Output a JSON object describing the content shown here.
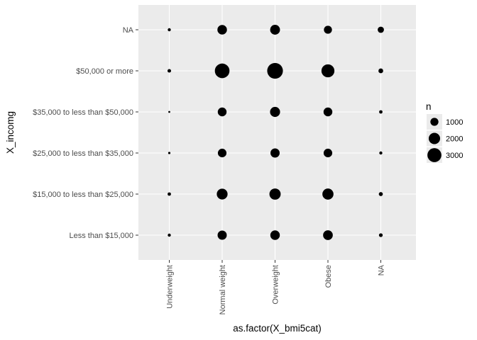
{
  "chart_data": {
    "type": "scatter",
    "xlabel": "as.factor(X_bmi5cat)",
    "ylabel": "X_incomg",
    "x_categories": [
      "Underweight",
      "Normal weight",
      "Overweight",
      "Obese",
      "NA"
    ],
    "y_categories": [
      "Less than $15,000",
      "$15,000 to less than $25,000",
      "$25,000 to less than $35,000",
      "$35,000 to less than $50,000",
      "$50,000 or more",
      "NA"
    ],
    "size_variable": "n",
    "points": [
      {
        "x": "Underweight",
        "y": "NA",
        "n": 150
      },
      {
        "x": "Normal weight",
        "y": "NA",
        "n": 1400
      },
      {
        "x": "Overweight",
        "y": "NA",
        "n": 1500
      },
      {
        "x": "Obese",
        "y": "NA",
        "n": 1000
      },
      {
        "x": "NA",
        "y": "NA",
        "n": 600
      },
      {
        "x": "Underweight",
        "y": "$50,000 or more",
        "n": 200
      },
      {
        "x": "Normal weight",
        "y": "$50,000 or more",
        "n": 3300
      },
      {
        "x": "Overweight",
        "y": "$50,000 or more",
        "n": 3800
      },
      {
        "x": "Obese",
        "y": "$50,000 or more",
        "n": 2600
      },
      {
        "x": "NA",
        "y": "$50,000 or more",
        "n": 350
      },
      {
        "x": "Underweight",
        "y": "$35,000 to less than $50,000",
        "n": 60
      },
      {
        "x": "Normal weight",
        "y": "$35,000 to less than $50,000",
        "n": 1200
      },
      {
        "x": "Overweight",
        "y": "$35,000 to less than $50,000",
        "n": 1550
      },
      {
        "x": "Obese",
        "y": "$35,000 to less than $50,000",
        "n": 1200
      },
      {
        "x": "NA",
        "y": "$35,000 to less than $50,000",
        "n": 180
      },
      {
        "x": "Underweight",
        "y": "$25,000 to less than $35,000",
        "n": 80
      },
      {
        "x": "Normal weight",
        "y": "$25,000 to less than $35,000",
        "n": 1150
      },
      {
        "x": "Overweight",
        "y": "$25,000 to less than $35,000",
        "n": 1300
      },
      {
        "x": "Obese",
        "y": "$25,000 to less than $35,000",
        "n": 1150
      },
      {
        "x": "NA",
        "y": "$25,000 to less than $35,000",
        "n": 150
      },
      {
        "x": "Underweight",
        "y": "$15,000 to less than $25,000",
        "n": 180
      },
      {
        "x": "Normal weight",
        "y": "$15,000 to less than $25,000",
        "n": 1800
      },
      {
        "x": "Overweight",
        "y": "$15,000 to less than $25,000",
        "n": 1950
      },
      {
        "x": "Obese",
        "y": "$15,000 to less than $25,000",
        "n": 1900
      },
      {
        "x": "NA",
        "y": "$15,000 to less than $25,000",
        "n": 250
      },
      {
        "x": "Underweight",
        "y": "Less than $15,000",
        "n": 150
      },
      {
        "x": "Normal weight",
        "y": "Less than $15,000",
        "n": 1300
      },
      {
        "x": "Overweight",
        "y": "Less than $15,000",
        "n": 1400
      },
      {
        "x": "Obese",
        "y": "Less than $15,000",
        "n": 1450
      },
      {
        "x": "NA",
        "y": "Less than $15,000",
        "n": 220
      }
    ],
    "legend": {
      "title": "n",
      "placement": "right",
      "entries": [
        {
          "label": "1000",
          "value": 1000
        },
        {
          "label": "2000",
          "value": 2000
        },
        {
          "label": "3000",
          "value": 3000
        }
      ]
    },
    "grid": true,
    "colors": {
      "panel_background": "#ebebeb",
      "grid_major": "#ffffff",
      "point": "#000000",
      "tick_text": "#4d4d4d"
    }
  }
}
